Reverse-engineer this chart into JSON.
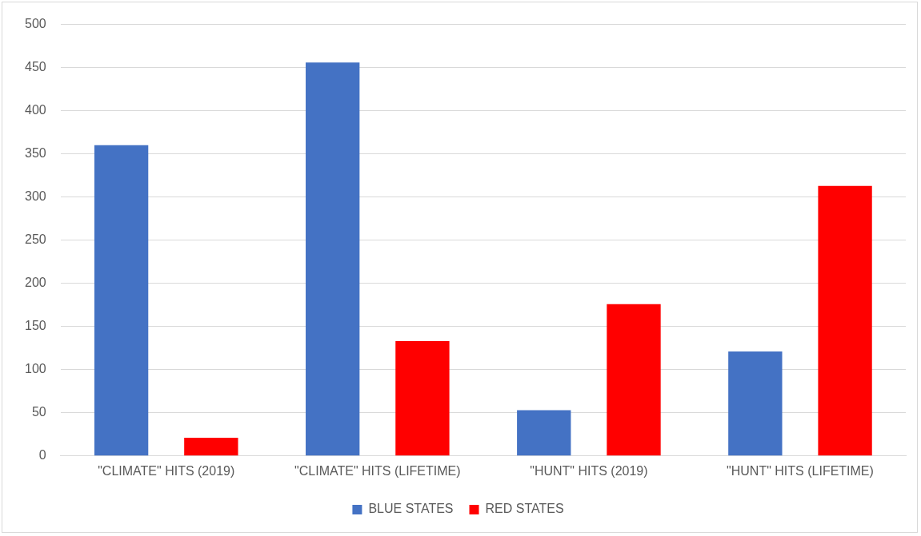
{
  "chart_data": {
    "type": "bar",
    "categories": [
      "\"CLIMATE\" HITS (2019)",
      "\"CLIMATE\" HITS (LIFETIME)",
      "\"HUNT\" HITS (2019)",
      "\"HUNT\" HITS (LIFETIME)"
    ],
    "series": [
      {
        "name": "BLUE STATES",
        "color": "#4472c4",
        "values": [
          360,
          456,
          53,
          121
        ]
      },
      {
        "name": "RED STATES",
        "color": "#ff0000",
        "values": [
          21,
          133,
          176,
          313
        ]
      }
    ],
    "ylim": [
      0,
      500
    ],
    "yticks": [
      0,
      50,
      100,
      150,
      200,
      250,
      300,
      350,
      400,
      450,
      500
    ],
    "grid": "y",
    "legend": "bottom"
  }
}
